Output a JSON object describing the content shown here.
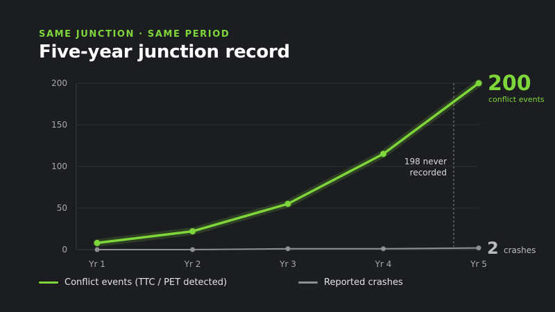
{
  "header": {
    "eyebrow": "SAME JUNCTION · SAME PERIOD",
    "title": "Five-year junction record"
  },
  "colors": {
    "conflict": "#7fd63a",
    "crashes": "#8e9096",
    "grid": "#2e3036",
    "background": "#1c1d21"
  },
  "chart_data": {
    "type": "line",
    "categories": [
      "Yr 1",
      "Yr 2",
      "Yr 3",
      "Yr 4",
      "Yr 5"
    ],
    "series": [
      {
        "name": "Conflict events (TTC / PET detected)",
        "values": [
          8,
          22,
          55,
          115,
          200
        ]
      },
      {
        "name": "Reported crashes",
        "values": [
          0,
          0,
          1,
          1,
          2
        ]
      }
    ],
    "ylim": [
      0,
      200
    ],
    "yticks": [
      0,
      50,
      100,
      150,
      200
    ],
    "grid": true,
    "legend_position": "bottom",
    "annotation": [
      "198 never",
      "recorded"
    ],
    "end_labels": {
      "conflict_value": "200",
      "conflict_caption": "conflict events",
      "crashes_value": "2",
      "crashes_caption": "crashes"
    }
  },
  "legend": [
    {
      "label": "Conflict events (TTC / PET detected)"
    },
    {
      "label": "Reported crashes"
    }
  ]
}
